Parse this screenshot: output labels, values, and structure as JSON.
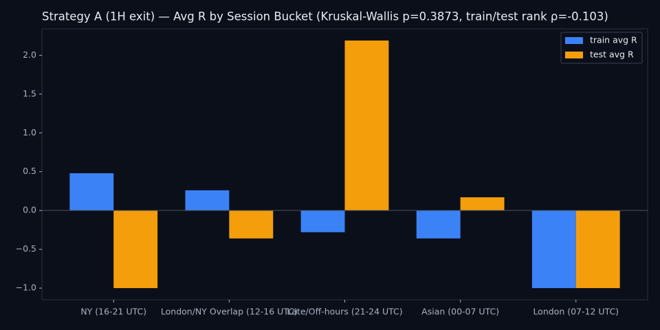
{
  "chart_data": {
    "type": "bar",
    "title": "Strategy A (1H exit) — Avg R by Session Bucket (Kruskal-Wallis p=0.3873, train/test rank ρ=-0.103)",
    "categories": [
      "NY (16-21 UTC)",
      "London/NY Overlap (12-16 UTC)",
      "Late/Off-hours (21-24 UTC)",
      "Asian (00-07 UTC)",
      "London (07-12 UTC)"
    ],
    "series": [
      {
        "name": "train avg R",
        "color": "#3b82f6",
        "values": [
          0.48,
          0.26,
          -0.28,
          -0.36,
          -1.0
        ]
      },
      {
        "name": "test avg R",
        "color": "#f59e0b",
        "values": [
          -1.0,
          -0.36,
          2.19,
          0.17,
          -1.0
        ]
      }
    ],
    "ylim": [
      -1.15,
      2.34
    ],
    "yticks": [
      {
        "value": -1,
        "label": "−1.0"
      },
      {
        "value": -0.5,
        "label": "−0.5"
      },
      {
        "value": 0,
        "label": "0.0"
      },
      {
        "value": 0.5,
        "label": "0.5"
      },
      {
        "value": 1,
        "label": "1.0"
      },
      {
        "value": 1.5,
        "label": "1.5"
      },
      {
        "value": 2,
        "label": "2.0"
      }
    ],
    "legend": "upper right"
  }
}
